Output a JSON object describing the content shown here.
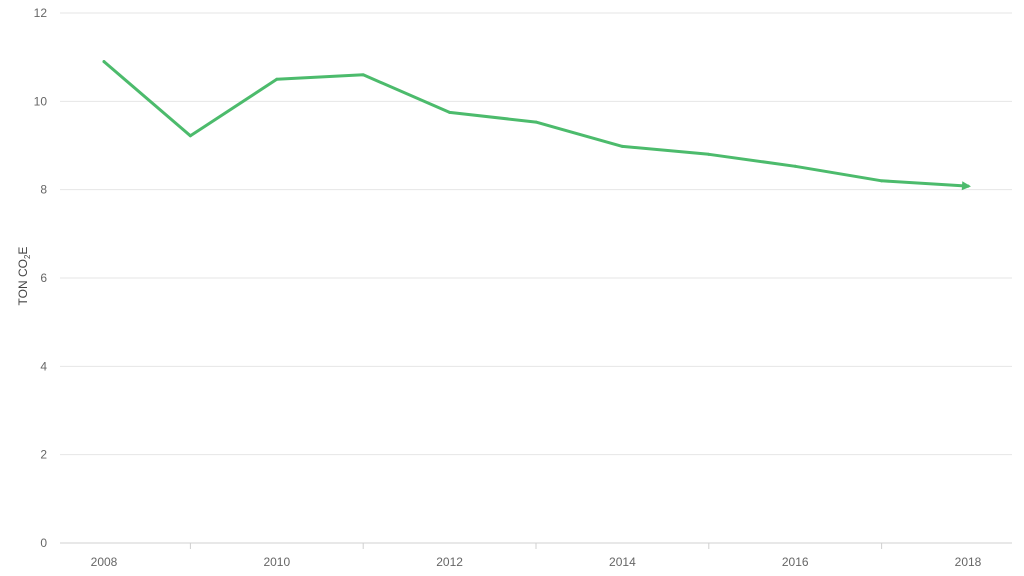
{
  "chart_data": {
    "type": "line",
    "x": [
      2008,
      2009,
      2010,
      2011,
      2012,
      2013,
      2014,
      2015,
      2016,
      2017,
      2018
    ],
    "series": [
      {
        "values": [
          10.9,
          9.22,
          10.5,
          10.6,
          9.75,
          9.53,
          8.98,
          8.8,
          8.53,
          8.2,
          8.08
        ]
      }
    ],
    "xlabel": "",
    "ylabel": {
      "main": "TON CO",
      "subscript": "2",
      "suffix": "E"
    },
    "ylim": [
      0,
      12
    ],
    "xlim": [
      2008,
      2018
    ],
    "y_ticks": [
      0,
      2,
      4,
      6,
      8,
      10,
      12
    ],
    "x_ticks": [
      2008,
      2010,
      2012,
      2014,
      2016,
      2018
    ],
    "grid": "horizontal",
    "line_color": "#4cbb6c",
    "end_marker": "arrow"
  }
}
